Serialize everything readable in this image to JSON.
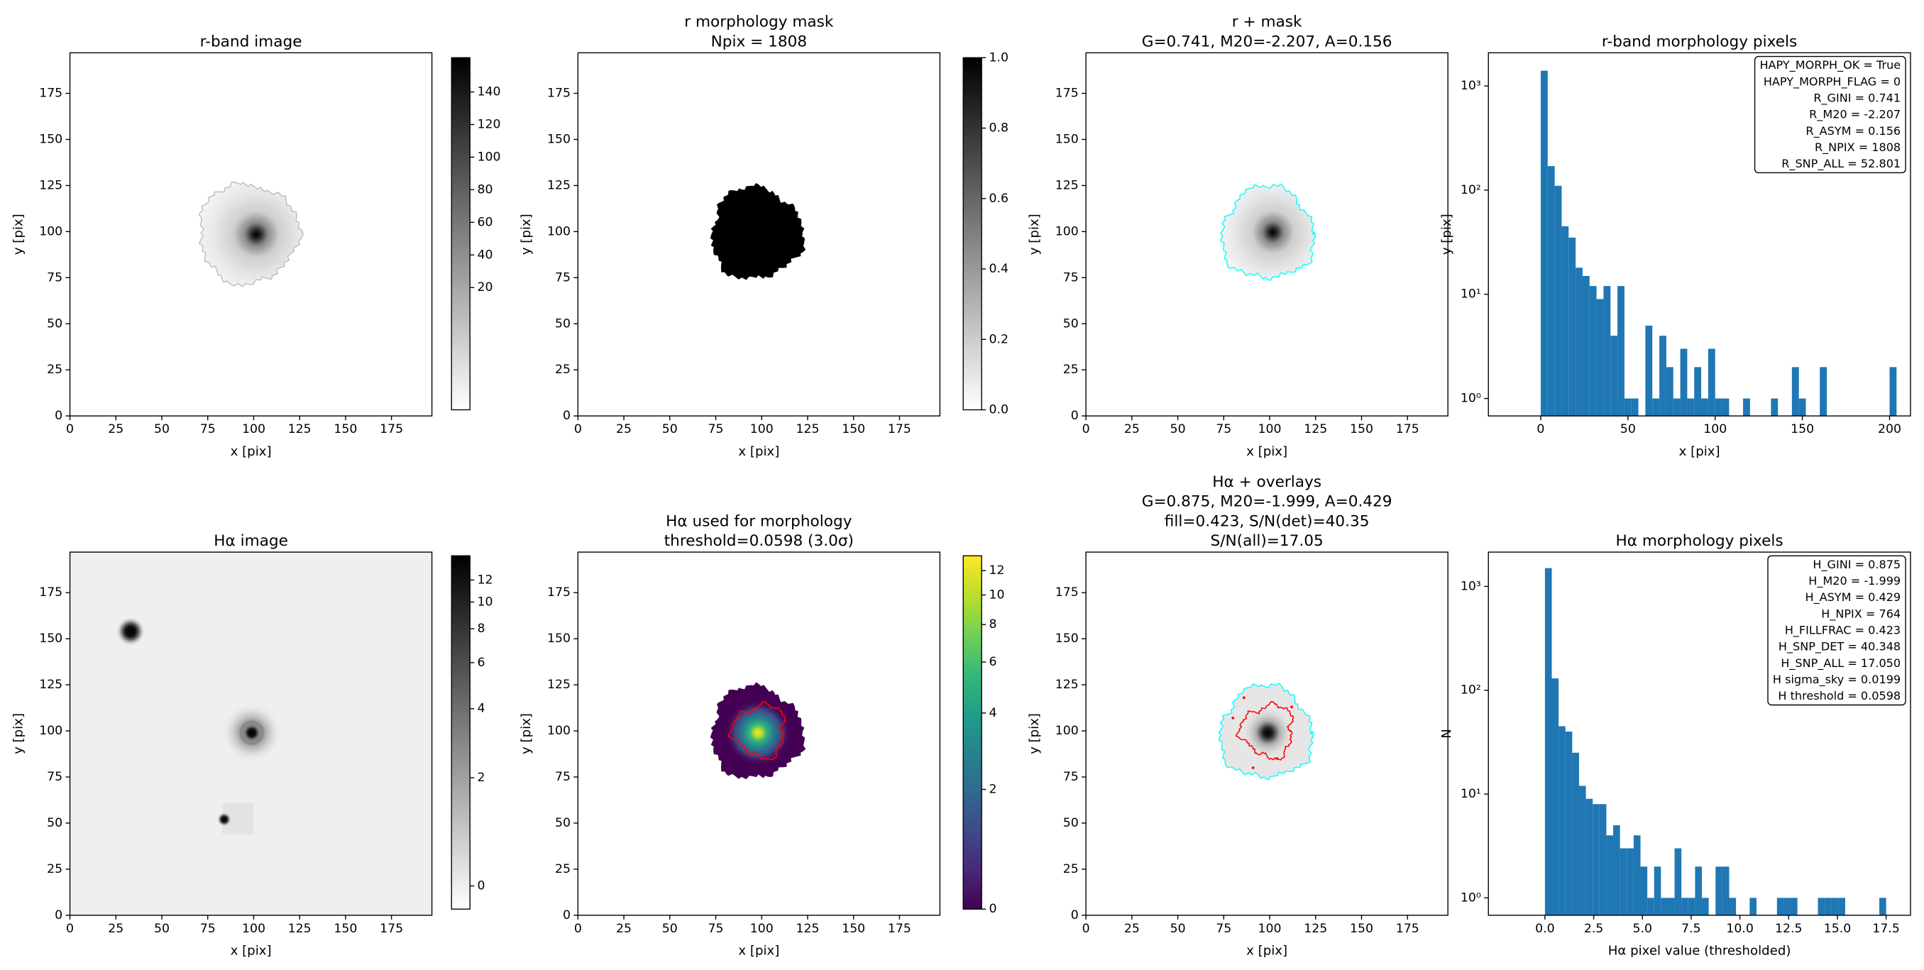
{
  "chart_data": [
    {
      "type": "image",
      "title": [
        "r-band image"
      ],
      "xlabel": "x [pix]",
      "ylabel": "y [pix]",
      "xlim": [
        0,
        197
      ],
      "ylim": [
        0,
        197
      ],
      "xticks": [
        0,
        25,
        50,
        75,
        100,
        125,
        150,
        175
      ],
      "yticks": [
        0,
        25,
        50,
        75,
        100,
        125,
        150,
        175
      ],
      "cmap": "gray_r",
      "contour_colors": [
        "#bbbbbb"
      ],
      "colorbar": {
        "cmap": "gray_r",
        "norm": "linear",
        "ylim": [
          -55,
          161
        ],
        "yticks": [
          20,
          40,
          60,
          80,
          100,
          120,
          140
        ]
      }
    },
    {
      "type": "image",
      "title": [
        "r morphology mask",
        "Npix = 1808"
      ],
      "xlabel": "x [pix]",
      "ylabel": "y [pix]",
      "xlim": [
        0,
        197
      ],
      "ylim": [
        0,
        197
      ],
      "xticks": [
        0,
        25,
        50,
        75,
        100,
        125,
        150,
        175
      ],
      "yticks": [
        0,
        25,
        50,
        75,
        100,
        125,
        150,
        175
      ],
      "cmap": "gray_r",
      "contour_colors": [],
      "colorbar": {
        "cmap": "gray_r",
        "norm": "linear",
        "ylim": [
          0,
          1
        ],
        "yticks": [
          {
            "value": 0,
            "label": "0.0"
          },
          0.2,
          0.4,
          0.6,
          0.8,
          {
            "value": 1,
            "label": "1.0"
          }
        ]
      }
    },
    {
      "type": "image",
      "title": [
        "r + mask",
        "G=0.741, M20=-2.207, A=0.156"
      ],
      "xlabel": "x [pix]",
      "ylabel": "y [pix]",
      "xlim": [
        0,
        197
      ],
      "ylim": [
        0,
        197
      ],
      "xticks": [
        0,
        25,
        50,
        75,
        100,
        125,
        150,
        175
      ],
      "yticks": [
        0,
        25,
        50,
        75,
        100,
        125,
        150,
        175
      ],
      "cmap": "gray_r",
      "contour_colors": [
        "cyan"
      ]
    },
    {
      "type": "histogram",
      "title": [
        "r-band morphology pixels"
      ],
      "xlabel": "x [pix]",
      "ylabel": "y [pix]",
      "color": "#1f77b4",
      "yscale": "log",
      "xlim": [
        -30,
        212
      ],
      "ylim": [
        0.68,
        2080
      ],
      "xticks": [
        0,
        50,
        100,
        150,
        200
      ],
      "yticks": [
        {
          "value": 1,
          "label": "10⁰"
        },
        {
          "value": 10,
          "label": "10¹"
        },
        {
          "value": 100,
          "label": "10²"
        },
        {
          "value": 1000,
          "label": "10³"
        }
      ],
      "bins": [
        0,
        4,
        8,
        12,
        16,
        20,
        24,
        28,
        32,
        36,
        40,
        44,
        48,
        52,
        56,
        60,
        64,
        68,
        72,
        76,
        80,
        84,
        88,
        92,
        96,
        100,
        104,
        108,
        112,
        116,
        120,
        124,
        128,
        132,
        136,
        140,
        144,
        148,
        152,
        156,
        160,
        164,
        168,
        172,
        176,
        180,
        184,
        188,
        192,
        196,
        200,
        204
      ],
      "values": [
        1400,
        170,
        110,
        45,
        35,
        18,
        15,
        12,
        9,
        12,
        4,
        12,
        1,
        1,
        0,
        5,
        1,
        4,
        2,
        1,
        3,
        1,
        2,
        1,
        3,
        1,
        1,
        0,
        0,
        1,
        0,
        0,
        0,
        1,
        0,
        0,
        2,
        1,
        0,
        0,
        2,
        0,
        0,
        0,
        0,
        0,
        0,
        0,
        0,
        0,
        2
      ],
      "annotation": [
        "HAPY_MORPH_OK = True",
        "HAPY_MORPH_FLAG = 0",
        "R_GINI = 0.741",
        "R_M20 = -2.207",
        "R_ASYM = 0.156",
        "R_NPIX = 1808",
        "R_SNP_ALL = 52.801"
      ]
    },
    {
      "type": "image",
      "title": [
        "Hα image"
      ],
      "xlabel": "x [pix]",
      "ylabel": "y [pix]",
      "xlim": [
        0,
        197
      ],
      "ylim": [
        0,
        197
      ],
      "xticks": [
        0,
        25,
        50,
        75,
        100,
        125,
        150,
        175
      ],
      "yticks": [
        0,
        25,
        50,
        75,
        100,
        125,
        150,
        175
      ],
      "cmap": "gray_r",
      "contour_colors": [],
      "colorbar": {
        "cmap": "gray_r",
        "norm": "asinh",
        "ylim": [
          -0.38,
          14.65
        ],
        "yticks": [
          0,
          2,
          4,
          6,
          8,
          10,
          12
        ]
      }
    },
    {
      "type": "image",
      "title": [
        "Hα used for morphology",
        "threshold=0.0598 (3.0σ)"
      ],
      "xlabel": "x [pix]",
      "ylabel": "y [pix]",
      "xlim": [
        0,
        197
      ],
      "ylim": [
        0,
        197
      ],
      "xticks": [
        0,
        25,
        50,
        75,
        100,
        125,
        150,
        175
      ],
      "yticks": [
        0,
        25,
        50,
        75,
        100,
        125,
        150,
        175
      ],
      "cmap": "viridis",
      "contour_colors": [
        "red"
      ],
      "colorbar": {
        "cmap": "viridis",
        "norm": "asinh",
        "ylim": [
          0,
          13.4
        ],
        "yticks": [
          0,
          2,
          4,
          6,
          8,
          10,
          12
        ]
      }
    },
    {
      "type": "image",
      "title": [
        "Hα + overlays",
        "G=0.875, M20=-1.999, A=0.429",
        "fill=0.423, S/N(det)=40.35",
        "S/N(all)=17.05"
      ],
      "xlabel": "x [pix]",
      "ylabel": "y [pix]",
      "xlim": [
        0,
        197
      ],
      "ylim": [
        0,
        197
      ],
      "xticks": [
        0,
        25,
        50,
        75,
        100,
        125,
        150,
        175
      ],
      "yticks": [
        0,
        25,
        50,
        75,
        100,
        125,
        150,
        175
      ],
      "cmap": "gray_r",
      "contour_colors": [
        "cyan",
        "red"
      ]
    },
    {
      "type": "histogram",
      "title": [
        "Hα morphology pixels"
      ],
      "xlabel": "Hα pixel value (thresholded)",
      "ylabel": "N",
      "color": "#1f77b4",
      "yscale": "log",
      "xlim": [
        -2.9,
        18.75
      ],
      "ylim": [
        0.68,
        2140
      ],
      "xticks": [
        {
          "value": 0,
          "label": "0.0"
        },
        2.5,
        {
          "value": 5,
          "label": "5.0"
        },
        7.5,
        {
          "value": 10,
          "label": "10.0"
        },
        12.5,
        {
          "value": 15,
          "label": "15.0"
        },
        17.5
      ],
      "yticks": [
        {
          "value": 1,
          "label": "10⁰"
        },
        {
          "value": 10,
          "label": "10¹"
        },
        {
          "value": 100,
          "label": "10²"
        },
        {
          "value": 1000,
          "label": "10³"
        }
      ],
      "bins": [
        0,
        0.35,
        0.7,
        1.05,
        1.4,
        1.75,
        2.1,
        2.45,
        2.8,
        3.15,
        3.5,
        3.85,
        4.2,
        4.55,
        4.9,
        5.25,
        5.6,
        5.95,
        6.3,
        6.65,
        7,
        7.35,
        7.7,
        8.05,
        8.4,
        8.75,
        9.1,
        9.45,
        9.8,
        10.15,
        10.5,
        10.85,
        11.2,
        11.55,
        11.9,
        12.25,
        12.6,
        12.95,
        13.3,
        13.65,
        14,
        14.35,
        14.7,
        15.05,
        15.4,
        15.75,
        16.1,
        16.45,
        16.8,
        17.15,
        17.5
      ],
      "values": [
        1500,
        130,
        45,
        40,
        25,
        12,
        9,
        8,
        8,
        4,
        5,
        3,
        3,
        4,
        2,
        1,
        2,
        1,
        1,
        3,
        1,
        1,
        2,
        1,
        0,
        2,
        2,
        1,
        0,
        0,
        1,
        0,
        0,
        0,
        1,
        1,
        1,
        0,
        0,
        0,
        1,
        1,
        1,
        1,
        0,
        0,
        0,
        0,
        0,
        1
      ],
      "annotation": [
        "H_GINI = 0.875",
        "H_M20 = -1.999",
        "H_ASYM = 0.429",
        "H_NPIX = 764",
        "H_FILLFRAC = 0.423",
        "H_SNP_DET = 40.348",
        "H_SNP_ALL = 17.050",
        "H sigma_sky = 0.0199",
        "H threshold = 0.0598"
      ]
    }
  ]
}
